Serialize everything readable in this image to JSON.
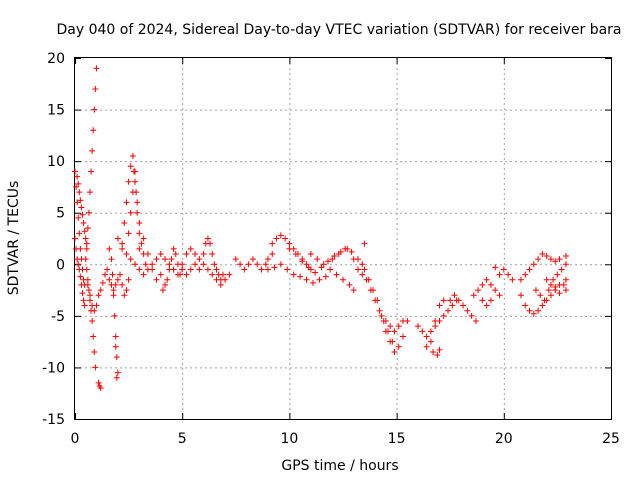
{
  "chart_data": {
    "type": "scatter",
    "title": "Day 040 of 2024, Sidereal Day-to-day VTEC variation (SDTVAR) for receiver bara",
    "xlabel": "GPS time / hours",
    "ylabel": "SDTVAR / TECUs",
    "xlim": [
      0,
      25
    ],
    "ylim": [
      -15,
      20
    ],
    "xticks": [
      0,
      5,
      10,
      15,
      20,
      25
    ],
    "yticks": [
      -15,
      -10,
      -5,
      0,
      5,
      10,
      15,
      20
    ],
    "xtick_labels": [
      "0",
      "5",
      "10",
      "15",
      "20",
      "25"
    ],
    "ytick_labels": [
      "-15",
      "-10",
      "-5",
      "0",
      "5",
      "10",
      "15",
      "20"
    ],
    "grid": true,
    "marker": "+",
    "color": "#ff0000",
    "series": [
      {
        "name": "SDTVAR",
        "points": [
          [
            0.0,
            9.0
          ],
          [
            0.05,
            7.5
          ],
          [
            0.1,
            6.0
          ],
          [
            0.15,
            4.5
          ],
          [
            0.2,
            3.0
          ],
          [
            0.25,
            1.5
          ],
          [
            0.3,
            0.5
          ],
          [
            0.35,
            -0.5
          ],
          [
            0.4,
            -1.5
          ],
          [
            0.45,
            -2.0
          ],
          [
            0.0,
            2.5
          ],
          [
            0.05,
            1.5
          ],
          [
            0.1,
            0.5
          ],
          [
            0.15,
            0.0
          ],
          [
            0.2,
            -0.5
          ],
          [
            0.25,
            -1.2
          ],
          [
            0.3,
            -2.0
          ],
          [
            0.35,
            -2.8
          ],
          [
            0.4,
            -3.5
          ],
          [
            0.45,
            -4.0
          ],
          [
            0.1,
            8.5
          ],
          [
            0.15,
            7.8
          ],
          [
            0.2,
            7.0
          ],
          [
            0.25,
            6.2
          ],
          [
            0.3,
            5.5
          ],
          [
            0.35,
            4.8
          ],
          [
            0.4,
            4.0
          ],
          [
            0.45,
            3.2
          ],
          [
            0.5,
            2.5
          ],
          [
            0.55,
            1.5
          ],
          [
            0.5,
            0.5
          ],
          [
            0.55,
            -0.5
          ],
          [
            0.6,
            -1.5
          ],
          [
            0.65,
            -2.5
          ],
          [
            0.7,
            -3.5
          ],
          [
            0.75,
            -4.5
          ],
          [
            0.8,
            -5.5
          ],
          [
            0.85,
            -7.0
          ],
          [
            0.9,
            -8.5
          ],
          [
            0.95,
            -10.0
          ],
          [
            0.55,
            2.0
          ],
          [
            0.6,
            3.5
          ],
          [
            0.65,
            5.0
          ],
          [
            0.7,
            7.0
          ],
          [
            0.75,
            9.0
          ],
          [
            0.8,
            11.0
          ],
          [
            0.85,
            13.0
          ],
          [
            0.9,
            15.0
          ],
          [
            0.95,
            17.0
          ],
          [
            1.0,
            19.0
          ],
          [
            0.6,
            -2.0
          ],
          [
            0.7,
            -3.0
          ],
          [
            0.8,
            -4.0
          ],
          [
            0.9,
            -4.5
          ],
          [
            1.0,
            -4.0
          ],
          [
            1.1,
            -3.0
          ],
          [
            1.2,
            -2.5
          ],
          [
            1.3,
            -1.8
          ],
          [
            1.4,
            -1.0
          ],
          [
            1.5,
            -0.5
          ],
          [
            1.1,
            -11.5
          ],
          [
            1.15,
            -11.8
          ],
          [
            1.2,
            -12.0
          ],
          [
            1.6,
            1.5
          ],
          [
            1.7,
            0.5
          ],
          [
            1.75,
            -1.0
          ],
          [
            1.8,
            -3.0
          ],
          [
            1.85,
            -5.0
          ],
          [
            1.9,
            -7.0
          ],
          [
            1.95,
            -9.0
          ],
          [
            2.0,
            -10.5
          ],
          [
            1.95,
            -11.0
          ],
          [
            1.9,
            -8.0
          ],
          [
            1.6,
            -1.5
          ],
          [
            1.7,
            -2.0
          ],
          [
            1.8,
            -2.5
          ],
          [
            1.9,
            -2.0
          ],
          [
            2.0,
            -1.5
          ],
          [
            2.1,
            -1.0
          ],
          [
            2.2,
            -2.0
          ],
          [
            2.3,
            -3.0
          ],
          [
            2.4,
            -2.5
          ],
          [
            2.5,
            -1.5
          ],
          [
            2.2,
            2.0
          ],
          [
            2.3,
            4.0
          ],
          [
            2.4,
            6.0
          ],
          [
            2.5,
            8.0
          ],
          [
            2.6,
            9.5
          ],
          [
            2.7,
            10.5
          ],
          [
            2.8,
            9.0
          ],
          [
            2.85,
            7.0
          ],
          [
            2.9,
            5.0
          ],
          [
            3.0,
            3.0
          ],
          [
            2.5,
            3.0
          ],
          [
            2.6,
            5.0
          ],
          [
            2.7,
            7.0
          ],
          [
            2.75,
            9.0
          ],
          [
            2.8,
            8.0
          ],
          [
            2.9,
            6.0
          ],
          [
            3.0,
            4.0
          ],
          [
            3.1,
            2.0
          ],
          [
            3.2,
            1.0
          ],
          [
            3.3,
            0.0
          ],
          [
            2.0,
            2.5
          ],
          [
            2.2,
            1.5
          ],
          [
            2.4,
            1.0
          ],
          [
            2.6,
            0.5
          ],
          [
            2.8,
            0.0
          ],
          [
            3.0,
            -0.5
          ],
          [
            3.2,
            -1.0
          ],
          [
            3.4,
            -0.5
          ],
          [
            3.6,
            0.0
          ],
          [
            3.8,
            0.5
          ],
          [
            3.0,
            1.5
          ],
          [
            3.2,
            2.5
          ],
          [
            3.4,
            1.0
          ],
          [
            3.6,
            -0.5
          ],
          [
            3.8,
            -1.5
          ],
          [
            4.0,
            -1.0
          ],
          [
            4.1,
            -2.5
          ],
          [
            4.2,
            -2.0
          ],
          [
            4.3,
            -1.5
          ],
          [
            4.4,
            -0.5
          ],
          [
            4.5,
            0.5
          ],
          [
            4.6,
            1.5
          ],
          [
            4.7,
            1.0
          ],
          [
            4.8,
            0.0
          ],
          [
            4.9,
            -1.0
          ],
          [
            5.0,
            -0.5
          ],
          [
            4.0,
            1.0
          ],
          [
            4.2,
            0.5
          ],
          [
            4.4,
            0.0
          ],
          [
            4.6,
            -0.5
          ],
          [
            4.8,
            -1.0
          ],
          [
            5.0,
            0.0
          ],
          [
            5.2,
            1.0
          ],
          [
            5.4,
            1.5
          ],
          [
            5.6,
            1.0
          ],
          [
            5.8,
            0.5
          ],
          [
            5.0,
            -0.5
          ],
          [
            5.2,
            -1.0
          ],
          [
            5.4,
            -0.5
          ],
          [
            5.6,
            0.0
          ],
          [
            5.8,
            -0.5
          ],
          [
            6.0,
            0.0
          ],
          [
            6.0,
            1.0
          ],
          [
            6.1,
            2.0
          ],
          [
            6.2,
            2.5
          ],
          [
            6.3,
            2.0
          ],
          [
            6.4,
            1.0
          ],
          [
            6.5,
            0.0
          ],
          [
            6.6,
            -0.5
          ],
          [
            6.7,
            -1.0
          ],
          [
            6.8,
            -1.5
          ],
          [
            6.9,
            -1.0
          ],
          [
            6.2,
            -0.5
          ],
          [
            6.4,
            -1.0
          ],
          [
            6.6,
            -1.5
          ],
          [
            6.8,
            -2.0
          ],
          [
            7.0,
            -1.5
          ],
          [
            7.2,
            -1.0
          ],
          [
            7.5,
            0.5
          ],
          [
            7.7,
            0.0
          ],
          [
            7.9,
            -0.5
          ],
          [
            8.1,
            0.0
          ],
          [
            8.3,
            0.5
          ],
          [
            8.5,
            0.0
          ],
          [
            8.7,
            -0.5
          ],
          [
            8.9,
            0.0
          ],
          [
            9.0,
            0.5
          ],
          [
            9.2,
            1.0
          ],
          [
            9.2,
            2.0
          ],
          [
            9.4,
            2.5
          ],
          [
            9.6,
            2.8
          ],
          [
            9.8,
            2.5
          ],
          [
            10.0,
            2.0
          ],
          [
            10.2,
            1.5
          ],
          [
            10.4,
            1.0
          ],
          [
            10.6,
            0.5
          ],
          [
            10.8,
            0.0
          ],
          [
            11.0,
            -0.5
          ],
          [
            9.0,
            -0.5
          ],
          [
            9.3,
            -0.3
          ],
          [
            9.6,
            0.0
          ],
          [
            9.9,
            -0.5
          ],
          [
            10.2,
            -1.0
          ],
          [
            10.5,
            -1.2
          ],
          [
            10.8,
            -1.5
          ],
          [
            11.1,
            -1.8
          ],
          [
            11.4,
            -1.5
          ],
          [
            11.7,
            -1.2
          ],
          [
            10.0,
            1.5
          ],
          [
            10.3,
            1.0
          ],
          [
            10.6,
            0.3
          ],
          [
            10.9,
            -0.3
          ],
          [
            11.2,
            -0.8
          ],
          [
            11.5,
            -0.3
          ],
          [
            11.8,
            0.3
          ],
          [
            12.1,
            0.8
          ],
          [
            12.4,
            1.2
          ],
          [
            12.7,
            1.5
          ],
          [
            11.0,
            1.0
          ],
          [
            11.3,
            0.5
          ],
          [
            11.6,
            0.0
          ],
          [
            11.9,
            -0.5
          ],
          [
            12.2,
            -1.0
          ],
          [
            12.5,
            -1.5
          ],
          [
            12.8,
            -2.0
          ],
          [
            13.0,
            -2.5
          ],
          [
            12.0,
            0.5
          ],
          [
            12.3,
            1.0
          ],
          [
            12.6,
            1.5
          ],
          [
            12.9,
            1.2
          ],
          [
            13.2,
            0.5
          ],
          [
            13.4,
            0.0
          ],
          [
            13.5,
            2.0
          ],
          [
            13.0,
            0.5
          ],
          [
            13.2,
            -0.5
          ],
          [
            13.4,
            -1.0
          ],
          [
            13.6,
            -1.5
          ],
          [
            13.8,
            -2.5
          ],
          [
            14.0,
            -3.5
          ],
          [
            14.2,
            -4.5
          ],
          [
            14.4,
            -5.5
          ],
          [
            14.6,
            -6.5
          ],
          [
            14.8,
            -7.5
          ],
          [
            13.5,
            -0.5
          ],
          [
            13.7,
            -1.5
          ],
          [
            13.9,
            -2.5
          ],
          [
            14.1,
            -3.5
          ],
          [
            14.3,
            -5.0
          ],
          [
            14.5,
            -6.5
          ],
          [
            14.7,
            -7.5
          ],
          [
            14.9,
            -8.5
          ],
          [
            15.1,
            -8.0
          ],
          [
            15.3,
            -7.0
          ],
          [
            14.5,
            -5.5
          ],
          [
            14.7,
            -6.0
          ],
          [
            14.9,
            -6.5
          ],
          [
            15.1,
            -6.0
          ],
          [
            15.3,
            -5.5
          ],
          [
            15.5,
            -5.5
          ],
          [
            16.0,
            -6.0
          ],
          [
            16.2,
            -6.5
          ],
          [
            16.4,
            -7.0
          ],
          [
            16.6,
            -6.5
          ],
          [
            16.8,
            -6.0
          ],
          [
            17.0,
            -5.5
          ],
          [
            17.2,
            -5.0
          ],
          [
            17.4,
            -4.5
          ],
          [
            17.6,
            -4.0
          ],
          [
            17.8,
            -3.5
          ],
          [
            16.4,
            -8.0
          ],
          [
            16.6,
            -7.5
          ],
          [
            16.8,
            -5.5
          ],
          [
            17.0,
            -4.0
          ],
          [
            17.2,
            -3.5
          ],
          [
            16.7,
            -8.5
          ],
          [
            16.9,
            -8.8
          ],
          [
            17.0,
            -8.3
          ],
          [
            17.5,
            -3.5
          ],
          [
            17.7,
            -3.0
          ],
          [
            17.9,
            -3.5
          ],
          [
            18.1,
            -4.0
          ],
          [
            18.3,
            -4.5
          ],
          [
            18.5,
            -5.0
          ],
          [
            18.7,
            -5.5
          ],
          [
            18.6,
            -3.0
          ],
          [
            18.8,
            -2.5
          ],
          [
            19.0,
            -2.0
          ],
          [
            19.2,
            -1.5
          ],
          [
            19.4,
            -2.0
          ],
          [
            19.6,
            -2.5
          ],
          [
            19.8,
            -3.0
          ],
          [
            19.0,
            -3.5
          ],
          [
            19.2,
            -4.0
          ],
          [
            19.4,
            -3.5
          ],
          [
            19.8,
            -1.0
          ],
          [
            20.0,
            -0.5
          ],
          [
            20.2,
            -1.0
          ],
          [
            20.4,
            -1.5
          ],
          [
            19.6,
            -0.3
          ],
          [
            20.8,
            -3.0
          ],
          [
            21.0,
            -4.0
          ],
          [
            21.2,
            -4.5
          ],
          [
            21.4,
            -4.8
          ],
          [
            21.6,
            -4.5
          ],
          [
            21.8,
            -4.0
          ],
          [
            22.0,
            -3.5
          ],
          [
            22.2,
            -3.0
          ],
          [
            22.4,
            -2.5
          ],
          [
            22.6,
            -2.0
          ],
          [
            20.8,
            -1.5
          ],
          [
            21.0,
            -1.0
          ],
          [
            21.2,
            -0.5
          ],
          [
            21.4,
            0.0
          ],
          [
            21.6,
            0.5
          ],
          [
            21.8,
            1.0
          ],
          [
            22.0,
            0.8
          ],
          [
            22.2,
            0.5
          ],
          [
            22.4,
            0.3
          ],
          [
            22.6,
            0.5
          ],
          [
            21.5,
            -2.5
          ],
          [
            21.7,
            -3.0
          ],
          [
            21.9,
            -3.5
          ],
          [
            22.1,
            -2.5
          ],
          [
            22.3,
            -1.5
          ],
          [
            22.5,
            -1.0
          ],
          [
            22.7,
            -0.5
          ],
          [
            22.9,
            0.0
          ],
          [
            22.9,
            -2.5
          ],
          [
            22.9,
            -1.5
          ],
          [
            22.0,
            -1.5
          ],
          [
            22.2,
            -2.0
          ],
          [
            22.4,
            -2.2
          ],
          [
            22.6,
            -2.8
          ],
          [
            22.8,
            -2.0
          ],
          [
            22.9,
            0.8
          ]
        ]
      }
    ]
  }
}
